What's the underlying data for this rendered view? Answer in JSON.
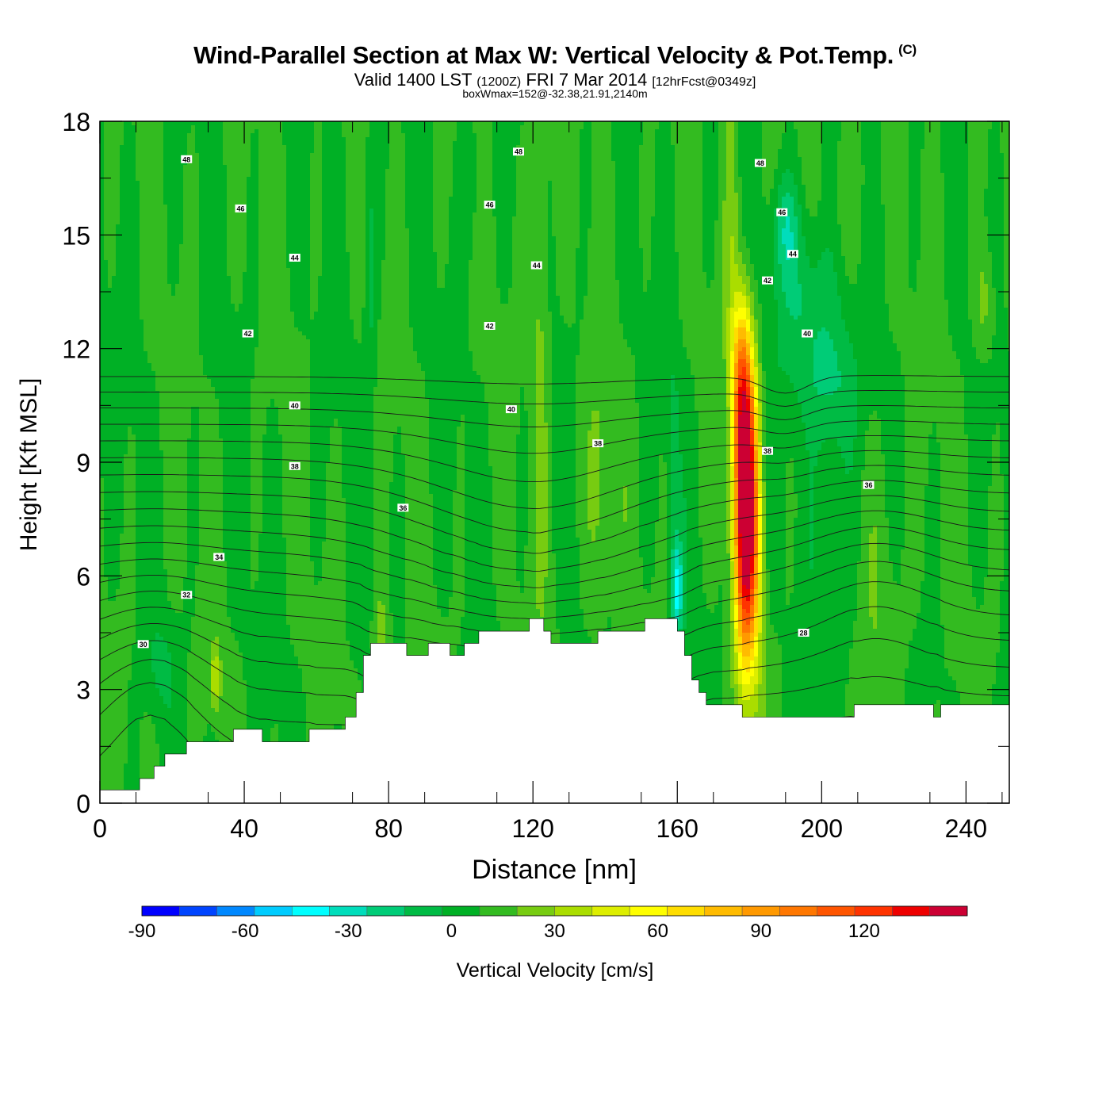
{
  "header": {
    "title": "Wind-Parallel Section at Max W: Vertical Velocity & Pot.Temp.",
    "title_mark": "(C)",
    "valid_prefix": "Valid 1400 LST",
    "valid_zulu": "(1200Z)",
    "valid_date": "FRI 7 Mar 2014",
    "forecast": "[12hrFcst@0349z]",
    "box_info": "boxWmax=152@-32.38,21.91,2140m"
  },
  "chart_data": {
    "type": "heatmap",
    "xlabel": "Distance [nm]",
    "ylabel": "Height [Kft MSL]",
    "xlim": [
      0,
      252
    ],
    "ylim": [
      0,
      18
    ],
    "x_ticks": [
      0,
      40,
      80,
      120,
      160,
      200,
      240
    ],
    "x_tick_labels": [
      "0",
      "40",
      "80",
      "120",
      "160",
      "200",
      "240"
    ],
    "y_ticks": [
      0,
      3,
      6,
      9,
      12,
      15,
      18
    ],
    "y_tick_labels": [
      "0",
      "3",
      "6",
      "9",
      "12",
      "15",
      "18"
    ],
    "colorbar": {
      "label": "Vertical Velocity [cm/s]",
      "min": -90,
      "max": 140,
      "step": 10,
      "tick_values": [
        -90,
        -60,
        -30,
        0,
        30,
        60,
        90,
        120
      ],
      "tick_labels": [
        "-90",
        "-60",
        "-30",
        "0",
        "30",
        "60",
        "90",
        "120"
      ],
      "colors": [
        "#0000ff",
        "#0044ff",
        "#0088ff",
        "#00ccff",
        "#00ffff",
        "#00ddbb",
        "#00cc77",
        "#00bb44",
        "#00b025",
        "#33bb20",
        "#77cc11",
        "#aadd00",
        "#ddee00",
        "#ffff00",
        "#ffdd00",
        "#ffbb00",
        "#ff9900",
        "#ff7700",
        "#ff5500",
        "#ff3300",
        "#ee0000",
        "#cc0033"
      ]
    },
    "terrain": [
      [
        0,
        0.35
      ],
      [
        11,
        0.35
      ],
      [
        11,
        0.65
      ],
      [
        15,
        0.65
      ],
      [
        15,
        0.98
      ],
      [
        18,
        0.98
      ],
      [
        18,
        1.3
      ],
      [
        24,
        1.3
      ],
      [
        24,
        1.62
      ],
      [
        37,
        1.62
      ],
      [
        37,
        1.95
      ],
      [
        45,
        1.95
      ],
      [
        45,
        1.62
      ],
      [
        58,
        1.62
      ],
      [
        58,
        1.95
      ],
      [
        68,
        1.95
      ],
      [
        68,
        2.27
      ],
      [
        71,
        2.27
      ],
      [
        71,
        2.92
      ],
      [
        73,
        2.92
      ],
      [
        73,
        3.9
      ],
      [
        75,
        3.9
      ],
      [
        75,
        4.22
      ],
      [
        85,
        4.22
      ],
      [
        85,
        3.9
      ],
      [
        91,
        3.9
      ],
      [
        91,
        4.22
      ],
      [
        97,
        4.22
      ],
      [
        97,
        3.9
      ],
      [
        101,
        3.9
      ],
      [
        101,
        4.22
      ],
      [
        105,
        4.22
      ],
      [
        105,
        4.54
      ],
      [
        119,
        4.54
      ],
      [
        119,
        4.87
      ],
      [
        123,
        4.87
      ],
      [
        123,
        4.54
      ],
      [
        125,
        4.54
      ],
      [
        125,
        4.22
      ],
      [
        138,
        4.22
      ],
      [
        138,
        4.54
      ],
      [
        151,
        4.54
      ],
      [
        151,
        4.87
      ],
      [
        160,
        4.87
      ],
      [
        160,
        4.54
      ],
      [
        162,
        4.54
      ],
      [
        162,
        3.9
      ],
      [
        164,
        3.9
      ],
      [
        164,
        3.25
      ],
      [
        166,
        3.25
      ],
      [
        166,
        2.92
      ],
      [
        168,
        2.92
      ],
      [
        168,
        2.6
      ],
      [
        178,
        2.6
      ],
      [
        178,
        2.27
      ],
      [
        209,
        2.27
      ],
      [
        209,
        2.6
      ],
      [
        231,
        2.6
      ],
      [
        231,
        2.27
      ],
      [
        233,
        2.27
      ],
      [
        233,
        2.6
      ],
      [
        252,
        2.6
      ]
    ],
    "velocity_features": [
      {
        "x": 179,
        "y": 7.8,
        "sx": 2.2,
        "sy": 2.8,
        "w": 152
      },
      {
        "x": 177.5,
        "y": 11.2,
        "sx": 1.8,
        "sy": 1.5,
        "w": 45
      },
      {
        "x": 175,
        "y": 15.5,
        "sx": 1.5,
        "sy": 3.5,
        "w": 15
      },
      {
        "x": 182,
        "y": 6.0,
        "sx": 1.4,
        "sy": 3.0,
        "w": 15
      },
      {
        "x": 160,
        "y": 5.6,
        "sx": 1.2,
        "sy": 0.9,
        "w": -38
      },
      {
        "x": 159,
        "y": 8.5,
        "sx": 1.2,
        "sy": 2.5,
        "w": -14
      },
      {
        "x": 196,
        "y": 13.2,
        "sx": 6.0,
        "sy": 1.8,
        "w": -22
      },
      {
        "x": 203,
        "y": 11.0,
        "sx": 5.0,
        "sy": 1.2,
        "w": -16
      },
      {
        "x": 190,
        "y": 15.2,
        "sx": 2.5,
        "sy": 1.0,
        "w": -22
      },
      {
        "x": 204,
        "y": 7.2,
        "sx": 4.0,
        "sy": 3.0,
        "w": -12
      },
      {
        "x": 122,
        "y": 13.0,
        "sx": 1.8,
        "sy": 5.0,
        "w": 16
      },
      {
        "x": 138,
        "y": 8.0,
        "sx": 2.5,
        "sy": 2.5,
        "w": 14
      },
      {
        "x": 78,
        "y": 4.0,
        "sx": 1.5,
        "sy": 1.2,
        "w": 20
      },
      {
        "x": 32,
        "y": 3.3,
        "sx": 1.0,
        "sy": 0.6,
        "w": 28
      },
      {
        "x": 17,
        "y": 3.6,
        "sx": 3.0,
        "sy": 0.8,
        "w": -10
      },
      {
        "x": 75,
        "y": 14.0,
        "sx": 1.2,
        "sy": 2.5,
        "w": -14
      },
      {
        "x": 103,
        "y": 16.5,
        "sx": 1.2,
        "sy": 1.2,
        "w": -12
      },
      {
        "x": 218,
        "y": 5.5,
        "sx": 5.0,
        "sy": 3.0,
        "w": 8
      },
      {
        "x": 245,
        "y": 13.2,
        "sx": 2.0,
        "sy": 1.0,
        "w": 15
      },
      {
        "x": 206,
        "y": 16.0,
        "sx": 4.0,
        "sy": 1.5,
        "w": 10
      }
    ],
    "theta_contours": {
      "levels": [
        29,
        30,
        31,
        32,
        33,
        34,
        35,
        36,
        37,
        38,
        39,
        40,
        41,
        42,
        43,
        44,
        45,
        46,
        47,
        48
      ],
      "labels": [
        {
          "text": "30",
          "x": 12,
          "y": 4.2
        },
        {
          "text": "32",
          "x": 24,
          "y": 5.5
        },
        {
          "text": "34",
          "x": 33,
          "y": 6.5
        },
        {
          "text": "36",
          "x": 84,
          "y": 7.8
        },
        {
          "text": "38",
          "x": 54,
          "y": 8.9
        },
        {
          "text": "38",
          "x": 138,
          "y": 9.5
        },
        {
          "text": "38",
          "x": 185,
          "y": 9.3
        },
        {
          "text": "36",
          "x": 213,
          "y": 8.4
        },
        {
          "text": "28",
          "x": 195,
          "y": 4.5
        },
        {
          "text": "40",
          "x": 54,
          "y": 10.5
        },
        {
          "text": "40",
          "x": 114,
          "y": 10.4
        },
        {
          "text": "40",
          "x": 196,
          "y": 12.4
        },
        {
          "text": "42",
          "x": 41,
          "y": 12.4
        },
        {
          "text": "42",
          "x": 108,
          "y": 12.6
        },
        {
          "text": "42",
          "x": 185,
          "y": 13.8
        },
        {
          "text": "44",
          "x": 54,
          "y": 14.4
        },
        {
          "text": "44",
          "x": 121,
          "y": 14.2
        },
        {
          "text": "44",
          "x": 192,
          "y": 14.5
        },
        {
          "text": "46",
          "x": 39,
          "y": 15.7
        },
        {
          "text": "46",
          "x": 108,
          "y": 15.8
        },
        {
          "text": "46",
          "x": 189,
          "y": 15.6
        },
        {
          "text": "48",
          "x": 24,
          "y": 17.0
        },
        {
          "text": "48",
          "x": 116,
          "y": 17.2
        },
        {
          "text": "48",
          "x": 183,
          "y": 16.9
        }
      ]
    }
  }
}
